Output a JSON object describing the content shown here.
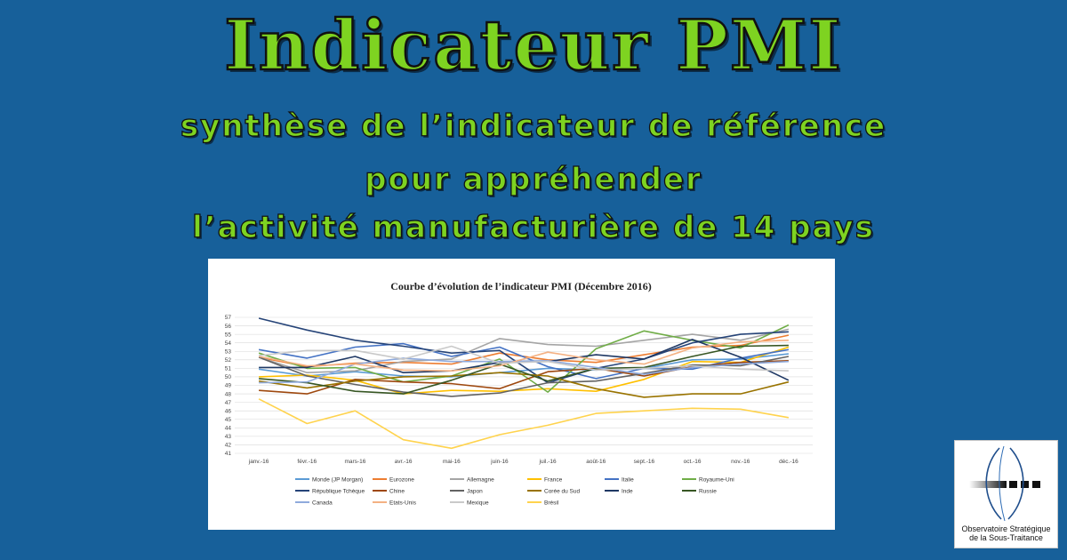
{
  "header": {
    "title": "Indicateur PMI",
    "subtitle_line1": "synthèse de l’indicateur de référence",
    "subtitle_line2": "pour appréhender",
    "subtitle_line3": "l’activité manufacturière de 14 pays"
  },
  "logo": {
    "line1": "Observatoire Stratégique",
    "line2": "de la Sous-Traitance"
  },
  "chart_data": {
    "type": "line",
    "title": "Courbe d’évolution de l’indicateur PMI (Décembre 2016)",
    "xlabel": "",
    "ylabel": "",
    "ylim": [
      41,
      57
    ],
    "y_ticks": [
      41,
      42,
      43,
      44,
      45,
      46,
      47,
      48,
      49,
      50,
      51,
      52,
      53,
      54,
      55,
      56,
      57
    ],
    "grid": true,
    "legend_position": "bottom",
    "categories": [
      "janv.-16",
      "févr.-16",
      "mars-16",
      "avr.-16",
      "mai-16",
      "juin-16",
      "juil.-16",
      "août-16",
      "sept.-16",
      "oct.-16",
      "nov.-16",
      "déc.-16"
    ],
    "series": [
      {
        "name": "Monde (JP Morgan)",
        "color": "#5b9bd5",
        "values": [
          50.9,
          50.1,
          50.6,
          50.1,
          50.0,
          50.5,
          51.0,
          50.8,
          51.0,
          52.0,
          52.1,
          52.7
        ]
      },
      {
        "name": "Eurozone",
        "color": "#ed7d31",
        "values": [
          52.3,
          51.2,
          51.6,
          51.7,
          51.5,
          52.8,
          52.0,
          51.7,
          52.6,
          53.5,
          53.7,
          54.9
        ]
      },
      {
        "name": "Allemagne",
        "color": "#a5a5a5",
        "values": [
          52.3,
          50.5,
          50.7,
          51.8,
          52.1,
          54.5,
          53.8,
          53.6,
          54.3,
          55.0,
          54.3,
          55.6
        ]
      },
      {
        "name": "France",
        "color": "#ffc000",
        "values": [
          50.0,
          50.2,
          49.6,
          48.0,
          48.4,
          48.3,
          48.6,
          48.3,
          49.7,
          51.8,
          51.7,
          53.5
        ]
      },
      {
        "name": "Italie",
        "color": "#4472c4",
        "values": [
          53.2,
          52.2,
          53.5,
          53.9,
          52.4,
          53.5,
          51.2,
          49.8,
          51.0,
          50.9,
          52.2,
          53.2
        ]
      },
      {
        "name": "Royaume-Uni",
        "color": "#70ad47",
        "values": [
          52.8,
          51.0,
          51.1,
          49.4,
          50.1,
          52.1,
          48.2,
          53.3,
          55.4,
          54.3,
          53.4,
          56.1
        ]
      },
      {
        "name": "République Tchèque",
        "color": "#264478",
        "values": [
          56.9,
          55.5,
          54.3,
          53.6,
          52.8,
          53.1,
          49.3,
          51.0,
          52.1,
          54.0,
          55.0,
          55.3
        ]
      },
      {
        "name": "Chine",
        "color": "#9e480e",
        "values": [
          48.4,
          48.0,
          49.7,
          49.4,
          49.2,
          48.6,
          50.6,
          51.0,
          50.1,
          51.2,
          51.7,
          51.9
        ]
      },
      {
        "name": "Japon",
        "color": "#636363",
        "values": [
          52.3,
          50.1,
          49.1,
          48.2,
          47.7,
          48.1,
          49.3,
          49.5,
          50.4,
          51.4,
          51.3,
          52.4
        ]
      },
      {
        "name": "Corée du Sud",
        "color": "#997300",
        "values": [
          49.5,
          48.7,
          49.5,
          50.0,
          50.1,
          50.5,
          50.1,
          48.6,
          47.6,
          48.0,
          48.0,
          49.4
        ]
      },
      {
        "name": "Inde",
        "color": "#1f3864",
        "values": [
          51.1,
          51.1,
          52.4,
          50.5,
          50.7,
          51.7,
          51.8,
          52.6,
          52.1,
          54.4,
          52.3,
          49.6
        ]
      },
      {
        "name": "Russie",
        "color": "#375623",
        "values": [
          49.8,
          49.3,
          48.3,
          48.0,
          49.6,
          51.5,
          49.5,
          51.0,
          51.1,
          52.4,
          53.6,
          53.7
        ]
      },
      {
        "name": "Canada",
        "color": "#8faadc",
        "values": [
          49.3,
          49.4,
          51.5,
          52.2,
          51.8,
          51.8,
          51.9,
          51.1,
          50.3,
          51.1,
          51.5,
          51.8
        ]
      },
      {
        "name": "Etats-Unis",
        "color": "#f4b183",
        "values": [
          52.4,
          51.3,
          51.5,
          50.8,
          50.7,
          51.3,
          52.9,
          52.0,
          51.5,
          53.4,
          54.1,
          54.3
        ]
      },
      {
        "name": "Mexique",
        "color": "#c9c9c9",
        "values": [
          52.5,
          53.1,
          53.1,
          52.1,
          53.6,
          51.6,
          51.8,
          50.8,
          51.0,
          51.3,
          50.9,
          50.7
        ]
      },
      {
        "name": "Brésil",
        "color": "#ffd34d",
        "values": [
          47.4,
          44.5,
          46.0,
          42.6,
          41.6,
          43.2,
          44.3,
          45.7,
          46.0,
          46.3,
          46.2,
          45.2
        ]
      }
    ]
  }
}
